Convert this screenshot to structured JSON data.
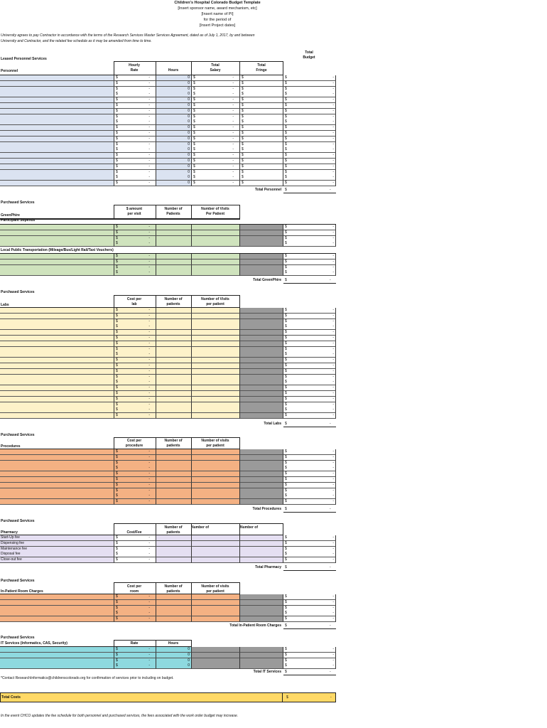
{
  "header": {
    "title": "Children's Hospital Colorado Budget Template",
    "sponsor": "[Insert sponsor name, award mechanism, etc]",
    "pi": "[Insert name of PI]",
    "period": "for the period of",
    "dates": "[Insert Project dates]"
  },
  "intro": "University agrees to pay Contractor in accordance with the terms of the Research Services Master Services Agreement, dated as of July 1, 2017, by and between University and Contractor, and the related fee schedule as it may be amended from time to time.",
  "total_budget_label": "Total\nBudget",
  "dollar": "$",
  "dash": "-",
  "zero": "0",
  "personnel": {
    "section": "Leased Personnel Services",
    "label": "Personnel",
    "col_rate": "Hourly\nRate",
    "col_hours": "Hours",
    "col_salary": "Total\nSalary",
    "col_fringe": "Total\nFringe",
    "total": "Total Personnel"
  },
  "greenphire": {
    "section": "Purchased Services",
    "label": "GreenPhire",
    "col_amount": "$ amount\nper visit",
    "col_patients": "Number of\nPatients",
    "col_visits": "Number of Visits\nPer Patient",
    "sub1": "Participant Stipends",
    "sub2": "Local Public Transportation (Mileage/Bus/Light Rail/Taxi Vouchers)",
    "total": "Total GreenPhire"
  },
  "labs": {
    "section": "Purchased Services",
    "label": "Labs",
    "col_cost": "Cost per\nlab",
    "col_patients": "Number of\npatients",
    "col_visits": "Number of Visits\nper patient",
    "total": "Total Labs"
  },
  "procedures": {
    "section": "Purchased Services",
    "label": "Procedures",
    "col_cost": "Cost per\nprocedure",
    "col_patients": "Number of\npatients",
    "col_visits": "Number of visits\nper patient",
    "total": "Total Procedures"
  },
  "pharmacy": {
    "section": "Purchased Services",
    "label": "Pharmacy",
    "col_cost": "Cost/Fee",
    "col_patients": "Number of\npatients",
    "col_num1": "Number of",
    "col_num2": "Number of",
    "items": [
      "Start-Up fee",
      "Dispensing fee",
      "Maintenance fee",
      "Disposal fee",
      "Close-out fee"
    ],
    "total": "Total Pharmacy"
  },
  "inpatient": {
    "section": "Purchased Services",
    "label": "In-Patient Room Charges",
    "col_cost": "Cost per\nroom",
    "col_patients": "Number of\npatients",
    "col_visits": "Number of visits\nper patient",
    "total": "Total In-Patient Room Charges"
  },
  "it": {
    "section": "Purchased Services",
    "label": "IT Services (Informatics, CAS, Security)",
    "col_rate": "Rate",
    "col_hours": "Hours",
    "total": "Total IT Services",
    "note": "*Contact ResearchInformatics@childrenscolorado.org for confirmation of services prior to including on budget."
  },
  "total_costs": "Total Costs",
  "footer": "In the event CHCO updates the fee schedule for both personnel and purchased services, the fees associated with the work order budget may increase.",
  "colors": {
    "personnel": "#dbe3f1",
    "green": "#cfe3bd",
    "labs": "#fdf2c9",
    "procedures": "#f4b183",
    "pharmacy": "#e5dff2",
    "inpatient": "#f4b183",
    "it": "#8ed9df",
    "gray": "#9a9a9a",
    "total": "#ffd966"
  }
}
